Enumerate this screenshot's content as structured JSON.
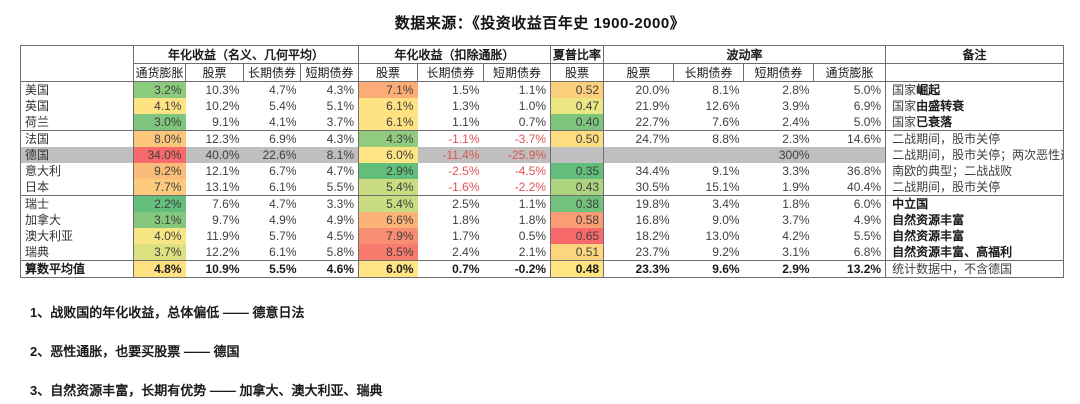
{
  "title": "数据来源：《投资收益百年史 1900-2000》",
  "table": {
    "group_headers": [
      "年化收益（名义、几何平均）",
      "年化收益（扣除通胀）",
      "夏普比率",
      "波动率",
      "备注"
    ],
    "sub_headers": [
      "通货膨胀",
      "股票",
      "长期债券",
      "短期债券",
      "股票",
      "长期债券",
      "短期债券",
      "股票",
      "股票",
      "长期债券",
      "短期债券",
      "通货膨胀"
    ],
    "colors": {
      "scale_green": "#63BE7B",
      "scale_yellow": "#FFE383",
      "scale_red": "#F8696B",
      "germany_row_gray": "#BFBFBF",
      "negative_text_red": "#E05252"
    },
    "rows": [
      {
        "country": "美国",
        "cells": [
          {
            "v": "3.2%",
            "bg": "#8CCA7E"
          },
          {
            "v": "10.3%"
          },
          {
            "v": "4.7%"
          },
          {
            "v": "4.3%"
          },
          {
            "v": "7.1%",
            "bg": "#FBAC77"
          },
          {
            "v": "1.5%"
          },
          {
            "v": "1.1%"
          },
          {
            "v": "0.52",
            "bg": "#FCCF7D"
          },
          {
            "v": "20.0%"
          },
          {
            "v": "8.1%"
          },
          {
            "v": "2.8%"
          },
          {
            "v": "5.0%"
          }
        ],
        "remark": {
          "pre": "国家",
          "bold": "崛起"
        }
      },
      {
        "country": "英国",
        "cells": [
          {
            "v": "4.1%",
            "bg": "#FFE383"
          },
          {
            "v": "10.2%"
          },
          {
            "v": "5.4%"
          },
          {
            "v": "5.1%"
          },
          {
            "v": "6.1%",
            "bg": "#FFE383"
          },
          {
            "v": "1.3%"
          },
          {
            "v": "1.0%"
          },
          {
            "v": "0.47",
            "bg": "#EBE784"
          },
          {
            "v": "21.9%"
          },
          {
            "v": "12.6%"
          },
          {
            "v": "3.9%"
          },
          {
            "v": "6.9%"
          }
        ],
        "remark": {
          "pre": "国家",
          "bold": "由盛转衰"
        }
      },
      {
        "country": "荷兰",
        "cells": [
          {
            "v": "3.0%",
            "bg": "#7EC67D"
          },
          {
            "v": "9.1%"
          },
          {
            "v": "4.1%"
          },
          {
            "v": "3.7%"
          },
          {
            "v": "6.1%",
            "bg": "#FFE383"
          },
          {
            "v": "1.1%"
          },
          {
            "v": "0.7%"
          },
          {
            "v": "0.40",
            "bg": "#7EC67D"
          },
          {
            "v": "22.7%"
          },
          {
            "v": "7.6%"
          },
          {
            "v": "2.4%"
          },
          {
            "v": "5.0%"
          }
        ],
        "remark": {
          "pre": "国家",
          "bold": "已衰落"
        }
      },
      {
        "country": "法国",
        "sep": true,
        "cells": [
          {
            "v": "8.0%",
            "bg": "#FBC77B"
          },
          {
            "v": "12.3%"
          },
          {
            "v": "6.9%"
          },
          {
            "v": "4.3%"
          },
          {
            "v": "4.3%",
            "bg": "#90CB7E"
          },
          {
            "v": "-1.1%",
            "red": true
          },
          {
            "v": "-3.7%",
            "red": true
          },
          {
            "v": "0.50",
            "bg": "#FEDC80"
          },
          {
            "v": "24.7%"
          },
          {
            "v": "8.8%"
          },
          {
            "v": "2.3%"
          },
          {
            "v": "14.6%"
          }
        ],
        "remark": {
          "pre": "二战期间，股市关停",
          "bold": ""
        }
      },
      {
        "country": "德国",
        "gray": true,
        "cells": [
          {
            "v": "34.0%",
            "bg": "#F8696B"
          },
          {
            "v": "40.0%"
          },
          {
            "v": "22.6%"
          },
          {
            "v": "8.1%"
          },
          {
            "v": "6.0%",
            "bg": "#FFE583"
          },
          {
            "v": "-11.4%",
            "red": true
          },
          {
            "v": "-25.9%",
            "red": true
          },
          {
            "v": ""
          },
          {
            "v": ""
          },
          {
            "v": ""
          },
          {
            "v": "300%"
          },
          {
            "v": ""
          }
        ],
        "remark": {
          "pre": "二战期间，股市关停；两次恶性通胀",
          "bold": ""
        }
      },
      {
        "country": "意大利",
        "cells": [
          {
            "v": "9.2%",
            "bg": "#FBBC79"
          },
          {
            "v": "12.1%"
          },
          {
            "v": "6.7%"
          },
          {
            "v": "4.7%"
          },
          {
            "v": "2.9%",
            "bg": "#63BE7B"
          },
          {
            "v": "-2.5%",
            "red": true
          },
          {
            "v": "-4.5%",
            "red": true
          },
          {
            "v": "0.35",
            "bg": "#63BE7B"
          },
          {
            "v": "34.4%"
          },
          {
            "v": "9.1%"
          },
          {
            "v": "3.3%"
          },
          {
            "v": "36.8%"
          }
        ],
        "remark": {
          "pre": "南欧的典型；二战战败",
          "bold": ""
        }
      },
      {
        "country": "日本",
        "cells": [
          {
            "v": "7.7%",
            "bg": "#FCCA7C"
          },
          {
            "v": "13.1%"
          },
          {
            "v": "6.1%"
          },
          {
            "v": "5.5%"
          },
          {
            "v": "5.4%",
            "bg": "#C9DC81"
          },
          {
            "v": "-1.6%",
            "red": true
          },
          {
            "v": "-2.2%",
            "red": true
          },
          {
            "v": "0.43",
            "bg": "#AED37F"
          },
          {
            "v": "30.5%"
          },
          {
            "v": "15.1%"
          },
          {
            "v": "1.9%"
          },
          {
            "v": "40.4%"
          }
        ],
        "remark": {
          "pre": "二战期间，股市关停",
          "bold": ""
        }
      },
      {
        "country": "瑞士",
        "sep": true,
        "cells": [
          {
            "v": "2.2%",
            "bg": "#63BE7B"
          },
          {
            "v": "7.6%"
          },
          {
            "v": "4.7%"
          },
          {
            "v": "3.3%"
          },
          {
            "v": "5.4%",
            "bg": "#C9DC81"
          },
          {
            "v": "2.5%"
          },
          {
            "v": "1.1%"
          },
          {
            "v": "0.38",
            "bg": "#71C27C"
          },
          {
            "v": "19.8%"
          },
          {
            "v": "3.4%"
          },
          {
            "v": "1.8%"
          },
          {
            "v": "6.0%"
          }
        ],
        "remark": {
          "pre": "",
          "bold": "中立国"
        }
      },
      {
        "country": "加拿大",
        "cells": [
          {
            "v": "3.1%",
            "bg": "#85C87D"
          },
          {
            "v": "9.7%"
          },
          {
            "v": "4.9%"
          },
          {
            "v": "4.9%"
          },
          {
            "v": "6.6%",
            "bg": "#FCB378"
          },
          {
            "v": "1.8%"
          },
          {
            "v": "1.8%"
          },
          {
            "v": "0.58",
            "bg": "#FA9C74"
          },
          {
            "v": "16.8%"
          },
          {
            "v": "9.0%"
          },
          {
            "v": "3.7%"
          },
          {
            "v": "4.9%"
          }
        ],
        "remark": {
          "pre": "",
          "bold": "自然资源丰富"
        }
      },
      {
        "country": "澳大利亚",
        "cells": [
          {
            "v": "4.0%",
            "bg": "#F6E684"
          },
          {
            "v": "11.9%"
          },
          {
            "v": "5.7%"
          },
          {
            "v": "4.5%"
          },
          {
            "v": "7.9%",
            "bg": "#F98D71"
          },
          {
            "v": "1.7%"
          },
          {
            "v": "0.5%"
          },
          {
            "v": "0.65",
            "bg": "#F8696B"
          },
          {
            "v": "18.2%"
          },
          {
            "v": "13.0%"
          },
          {
            "v": "4.2%"
          },
          {
            "v": "5.5%"
          }
        ],
        "remark": {
          "pre": "",
          "bold": "自然资源丰富"
        }
      },
      {
        "country": "瑞典",
        "cells": [
          {
            "v": "3.7%",
            "bg": "#DDE182"
          },
          {
            "v": "12.2%"
          },
          {
            "v": "6.1%"
          },
          {
            "v": "5.8%"
          },
          {
            "v": "8.5%",
            "bg": "#F87B6E"
          },
          {
            "v": "2.4%"
          },
          {
            "v": "2.1%"
          },
          {
            "v": "0.51",
            "bg": "#FDD57E"
          },
          {
            "v": "23.7%"
          },
          {
            "v": "9.2%"
          },
          {
            "v": "3.1%"
          },
          {
            "v": "6.8%"
          }
        ],
        "remark": {
          "pre": "",
          "bold": "自然资源丰富、高福利"
        }
      },
      {
        "country": "算数平均值",
        "sep": true,
        "avg": true,
        "cells": [
          {
            "v": "4.8%",
            "bg": "#FFE182"
          },
          {
            "v": "10.9%"
          },
          {
            "v": "5.5%"
          },
          {
            "v": "4.6%"
          },
          {
            "v": "6.0%",
            "bg": "#FFE583"
          },
          {
            "v": "0.7%"
          },
          {
            "v": "-0.2%",
            "red": true
          },
          {
            "v": "0.48",
            "bg": "#FFE683"
          },
          {
            "v": "23.3%"
          },
          {
            "v": "9.6%"
          },
          {
            "v": "2.9%"
          },
          {
            "v": "13.2%"
          }
        ],
        "remark": {
          "pre": "统计数据中，不含德国",
          "bold": ""
        }
      }
    ]
  },
  "notes": [
    "1、战败国的年化收益，总体偏低 —— 德意日法",
    "2、恶性通胀，也要买股票 —— 德国",
    "3、自然资源丰富，长期有优势 —— 加拿大、澳大利亚、瑞典"
  ]
}
